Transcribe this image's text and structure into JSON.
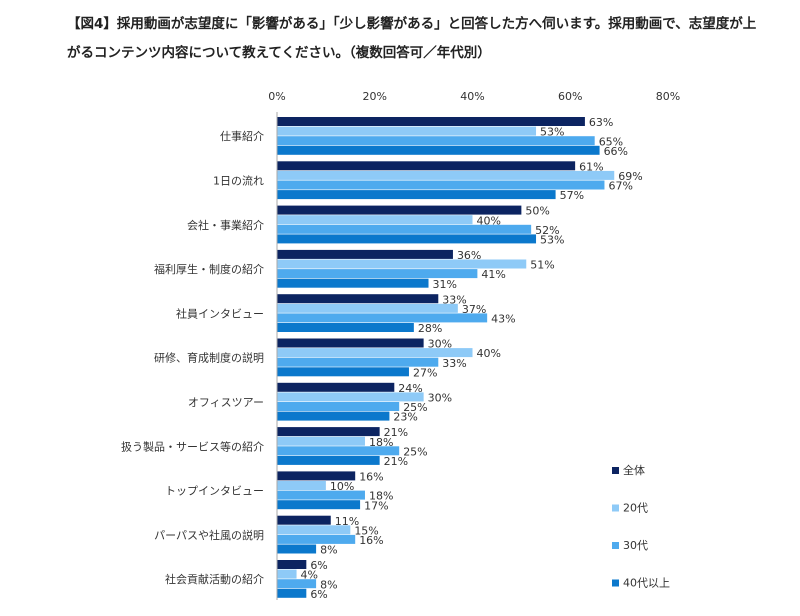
{
  "chart_data": {
    "type": "bar",
    "orientation": "horizontal",
    "title": "【図4】採用動画が志望度に「影響がある」「少し影響がある」と回答した方へ伺います。採用動画で、志望度が上がるコンテンツ内容について教えてください。（複数回答可／年代別）",
    "xlim": [
      0,
      80
    ],
    "xticks": [
      "0%",
      "20%",
      "40%",
      "60%",
      "80%"
    ],
    "xtick_values": [
      0,
      20,
      40,
      60,
      80
    ],
    "unit": "%",
    "grid": false,
    "legend_position": "right-bottom",
    "categories": [
      "仕事紹介",
      "1日の流れ",
      "会社・事業紹介",
      "福利厚生・制度の紹介",
      "社員インタビュー",
      "研修、育成制度の説明",
      "オフィスツアー",
      "扱う製品・サービス等の紹介",
      "トップインタビュー",
      "パーパスや社風の説明",
      "社会貢献活動の紹介"
    ],
    "series": [
      {
        "name": "全体",
        "color": "#0c2461",
        "values": [
          63,
          61,
          50,
          36,
          33,
          30,
          24,
          21,
          16,
          11,
          6
        ]
      },
      {
        "name": "20代",
        "color": "#8ecaf7",
        "values": [
          53,
          69,
          40,
          51,
          37,
          40,
          30,
          18,
          10,
          15,
          4
        ]
      },
      {
        "name": "30代",
        "color": "#4eaaee",
        "values": [
          65,
          67,
          52,
          41,
          43,
          33,
          25,
          25,
          18,
          16,
          8
        ]
      },
      {
        "name": "40代以上",
        "color": "#0b78cc",
        "values": [
          66,
          57,
          53,
          31,
          28,
          27,
          23,
          21,
          17,
          8,
          6
        ]
      }
    ]
  }
}
